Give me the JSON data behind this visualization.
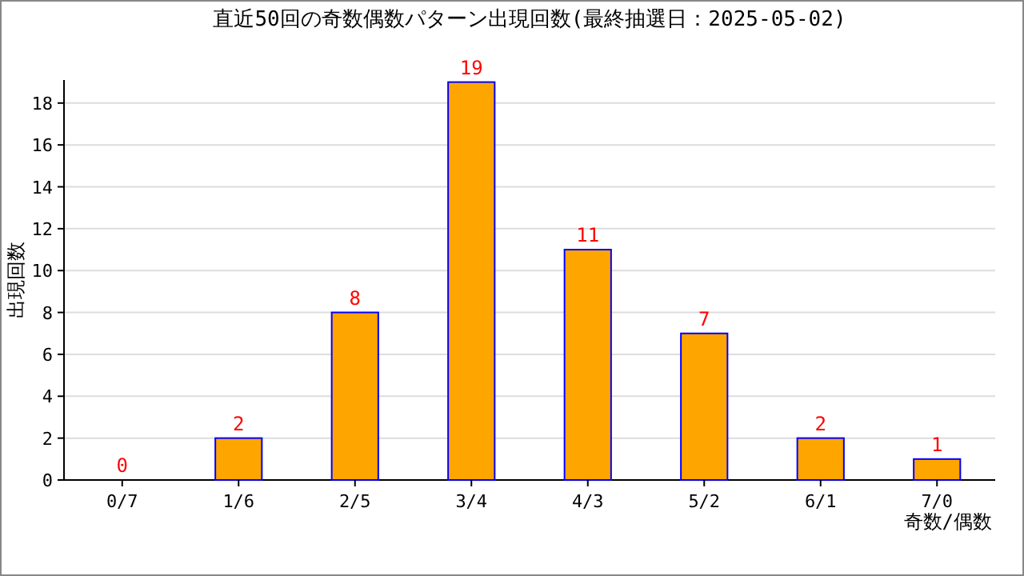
{
  "chart_data": {
    "type": "bar",
    "title": "直近50回の奇数偶数パターン出現回数(最終抽選日：2025-05-02)",
    "xlabel": "奇数/偶数",
    "ylabel": "出現回数",
    "categories": [
      "0/7",
      "1/6",
      "2/5",
      "3/4",
      "4/3",
      "5/2",
      "6/1",
      "7/0"
    ],
    "values": [
      0,
      2,
      8,
      19,
      11,
      7,
      2,
      1
    ],
    "color": "#ffa500",
    "ylim": [
      0,
      19.1
    ],
    "yticks": [
      0,
      2,
      4,
      6,
      8,
      10,
      12,
      14,
      16,
      18
    ],
    "grid": "y",
    "data_labels": true
  }
}
